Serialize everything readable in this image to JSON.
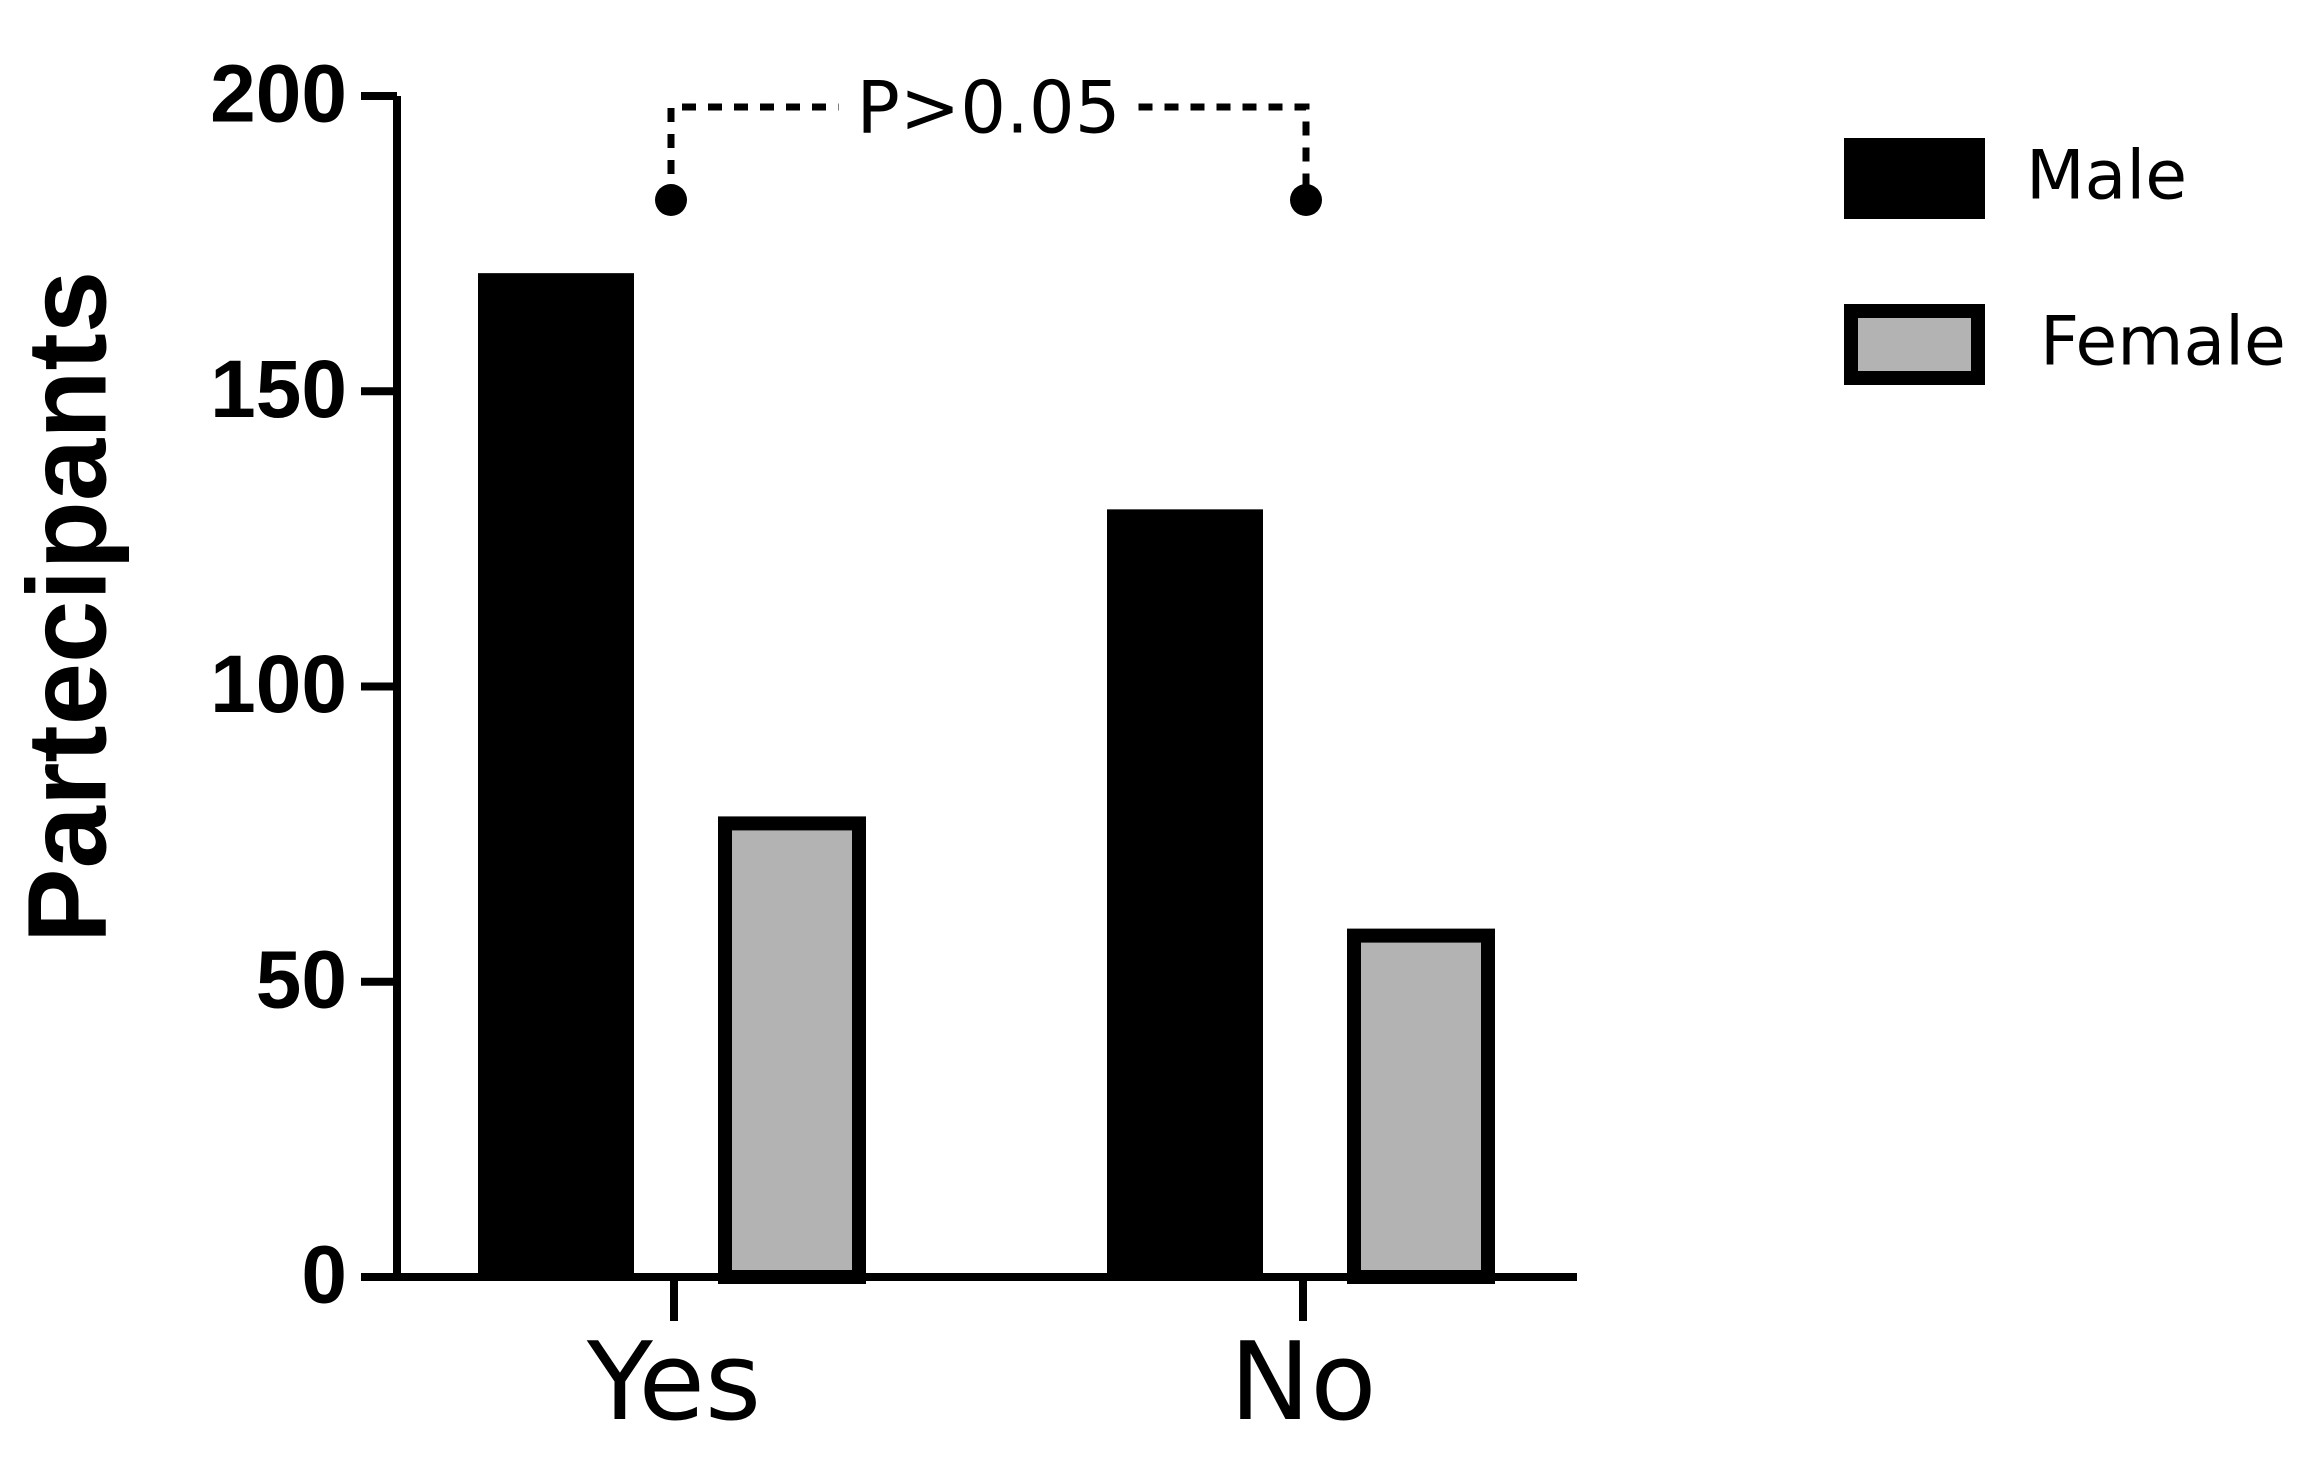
{
  "chart_data": {
    "type": "bar",
    "y_label": "Partecipants",
    "categories": [
      "Yes",
      "No"
    ],
    "series": [
      {
        "name": "Male",
        "color": "#000000",
        "values": [
          170,
          130
        ]
      },
      {
        "name": "Female",
        "color": "#b3b3b3",
        "values": [
          78,
          59
        ]
      }
    ],
    "ylim": [
      0,
      200
    ],
    "yticks": [
      0,
      50,
      100,
      150,
      200
    ],
    "annotation": "P>0.05",
    "legend": "top-right"
  }
}
